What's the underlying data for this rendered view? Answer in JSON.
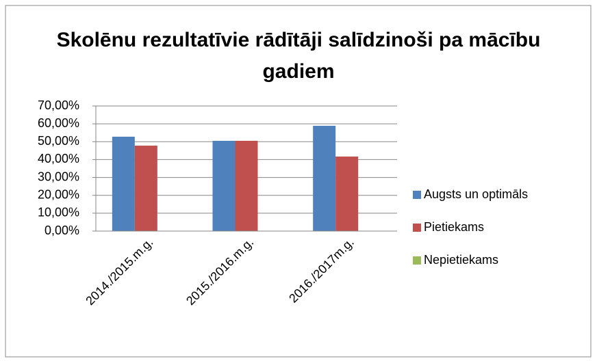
{
  "chart_data": {
    "type": "bar",
    "title": "Skolēnu rezultatīvie rādītāji salīdzinoši pa mācību gadiem",
    "categories": [
      "2014./2015.m.g.",
      "2015./2016.m.g.",
      "2016./2017m.g."
    ],
    "series": [
      {
        "name": "Augsts un optimāls",
        "color": "#4f81bd",
        "values": [
          52.8,
          50.5,
          58.9
        ]
      },
      {
        "name": "Pietiekams",
        "color": "#c0504d",
        "values": [
          47.8,
          50.5,
          41.7
        ]
      },
      {
        "name": "Nepietiekams",
        "color": "#9bbb59",
        "values": [
          0,
          0,
          0
        ]
      }
    ],
    "ylim": [
      0,
      70
    ],
    "yticks": [
      {
        "value": 0,
        "label": "0,00%"
      },
      {
        "value": 10,
        "label": "10,00%"
      },
      {
        "value": 20,
        "label": "20,00%"
      },
      {
        "value": 30,
        "label": "30,00%"
      },
      {
        "value": 40,
        "label": "40,00%"
      },
      {
        "value": 50,
        "label": "50,00%"
      },
      {
        "value": 60,
        "label": "60,00%"
      },
      {
        "value": 70,
        "label": "70,00%"
      }
    ],
    "grid": true,
    "legend": "right"
  }
}
